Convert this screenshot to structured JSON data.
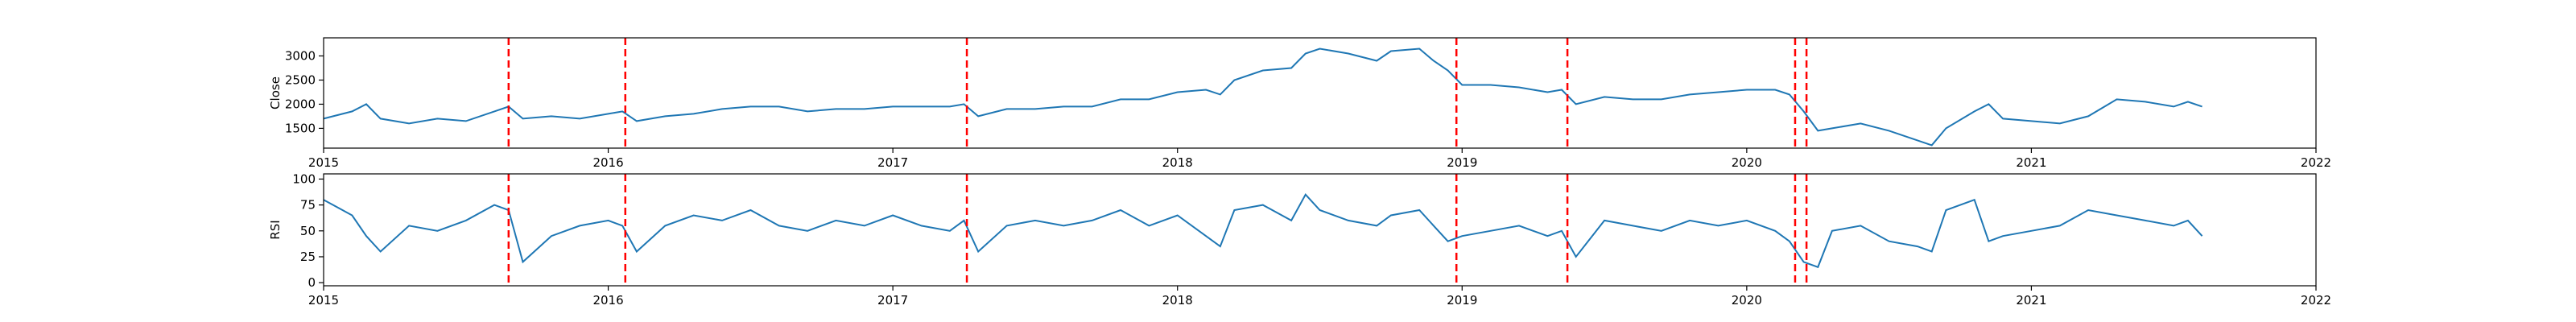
{
  "chart_data": [
    {
      "type": "line",
      "ylabel": "Close",
      "color": "#1f77b4",
      "vline_color": "#ff0000",
      "x": [
        2015.0,
        2015.1,
        2015.15,
        2015.2,
        2015.3,
        2015.4,
        2015.5,
        2015.6,
        2015.65,
        2015.7,
        2015.8,
        2015.9,
        2016.0,
        2016.05,
        2016.1,
        2016.2,
        2016.3,
        2016.4,
        2016.5,
        2016.6,
        2016.7,
        2016.8,
        2016.9,
        2017.0,
        2017.1,
        2017.2,
        2017.25,
        2017.3,
        2017.4,
        2017.5,
        2017.6,
        2017.7,
        2017.8,
        2017.9,
        2018.0,
        2018.1,
        2018.15,
        2018.2,
        2018.3,
        2018.4,
        2018.45,
        2018.5,
        2018.6,
        2018.7,
        2018.75,
        2018.85,
        2018.9,
        2018.95,
        2019.0,
        2019.1,
        2019.2,
        2019.3,
        2019.35,
        2019.4,
        2019.5,
        2019.6,
        2019.7,
        2019.8,
        2019.9,
        2020.0,
        2020.1,
        2020.15,
        2020.2,
        2020.25,
        2020.3,
        2020.4,
        2020.5,
        2020.6,
        2020.65,
        2020.7,
        2020.8,
        2020.85,
        2020.9,
        2021.0,
        2021.1,
        2021.2,
        2021.3,
        2021.4,
        2021.5,
        2021.55,
        2021.6
      ],
      "values": [
        1700,
        1850,
        2000,
        1700,
        1600,
        1700,
        1650,
        1850,
        1950,
        1700,
        1750,
        1700,
        1800,
        1850,
        1650,
        1750,
        1800,
        1900,
        1950,
        1950,
        1850,
        1900,
        1900,
        1950,
        1950,
        1950,
        2000,
        1750,
        1900,
        1900,
        1950,
        1950,
        2100,
        2100,
        2250,
        2300,
        2200,
        2500,
        2700,
        2750,
        3050,
        3150,
        3050,
        2900,
        3100,
        3150,
        2900,
        2700,
        2400,
        2400,
        2350,
        2250,
        2300,
        2000,
        2150,
        2100,
        2100,
        2200,
        2250,
        2300,
        2300,
        2200,
        1850,
        1450,
        1500,
        1600,
        1450,
        1250,
        1150,
        1500,
        1850,
        2000,
        1700,
        1650,
        1600,
        1750,
        2100,
        2050,
        1950,
        2050,
        1950
      ],
      "xlim": [
        2015,
        2022
      ],
      "xticks": [
        2015,
        2016,
        2017,
        2018,
        2019,
        2020,
        2021,
        2022
      ],
      "ylim": [
        1090,
        3375
      ],
      "yticks": [
        1500,
        2000,
        2500,
        3000
      ],
      "vlines": [
        2015.65,
        2016.06,
        2017.26,
        2018.98,
        2019.37,
        2020.17,
        2020.21
      ]
    },
    {
      "type": "line",
      "ylabel": "RSI",
      "color": "#1f77b4",
      "vline_color": "#ff0000",
      "x": [
        2015.0,
        2015.1,
        2015.15,
        2015.2,
        2015.3,
        2015.4,
        2015.5,
        2015.6,
        2015.65,
        2015.7,
        2015.8,
        2015.9,
        2016.0,
        2016.05,
        2016.1,
        2016.2,
        2016.3,
        2016.4,
        2016.5,
        2016.6,
        2016.7,
        2016.8,
        2016.9,
        2017.0,
        2017.1,
        2017.2,
        2017.25,
        2017.3,
        2017.4,
        2017.5,
        2017.6,
        2017.7,
        2017.8,
        2017.9,
        2018.0,
        2018.1,
        2018.15,
        2018.2,
        2018.3,
        2018.4,
        2018.45,
        2018.5,
        2018.6,
        2018.7,
        2018.75,
        2018.85,
        2018.9,
        2018.95,
        2019.0,
        2019.1,
        2019.2,
        2019.3,
        2019.35,
        2019.4,
        2019.5,
        2019.6,
        2019.7,
        2019.8,
        2019.9,
        2020.0,
        2020.1,
        2020.15,
        2020.2,
        2020.25,
        2020.3,
        2020.4,
        2020.5,
        2020.6,
        2020.65,
        2020.7,
        2020.8,
        2020.85,
        2020.9,
        2021.0,
        2021.1,
        2021.2,
        2021.3,
        2021.4,
        2021.5,
        2021.55,
        2021.6
      ],
      "values": [
        80,
        65,
        45,
        30,
        55,
        50,
        60,
        75,
        70,
        20,
        45,
        55,
        60,
        55,
        30,
        55,
        65,
        60,
        70,
        55,
        50,
        60,
        55,
        65,
        55,
        50,
        60,
        30,
        55,
        60,
        55,
        60,
        70,
        55,
        65,
        45,
        35,
        70,
        75,
        60,
        85,
        70,
        60,
        55,
        65,
        70,
        55,
        40,
        45,
        50,
        55,
        45,
        50,
        25,
        60,
        55,
        50,
        60,
        55,
        60,
        50,
        40,
        20,
        15,
        50,
        55,
        40,
        35,
        30,
        70,
        80,
        40,
        45,
        50,
        55,
        70,
        65,
        60,
        55,
        60,
        45
      ],
      "xlim": [
        2015,
        2022
      ],
      "xticks": [
        2015,
        2016,
        2017,
        2018,
        2019,
        2020,
        2021,
        2022
      ],
      "ylim": [
        -3,
        105
      ],
      "yticks": [
        0,
        25,
        50,
        75,
        100
      ],
      "vlines": [
        2015.65,
        2016.06,
        2017.26,
        2018.98,
        2019.37,
        2020.17,
        2020.21
      ]
    }
  ]
}
